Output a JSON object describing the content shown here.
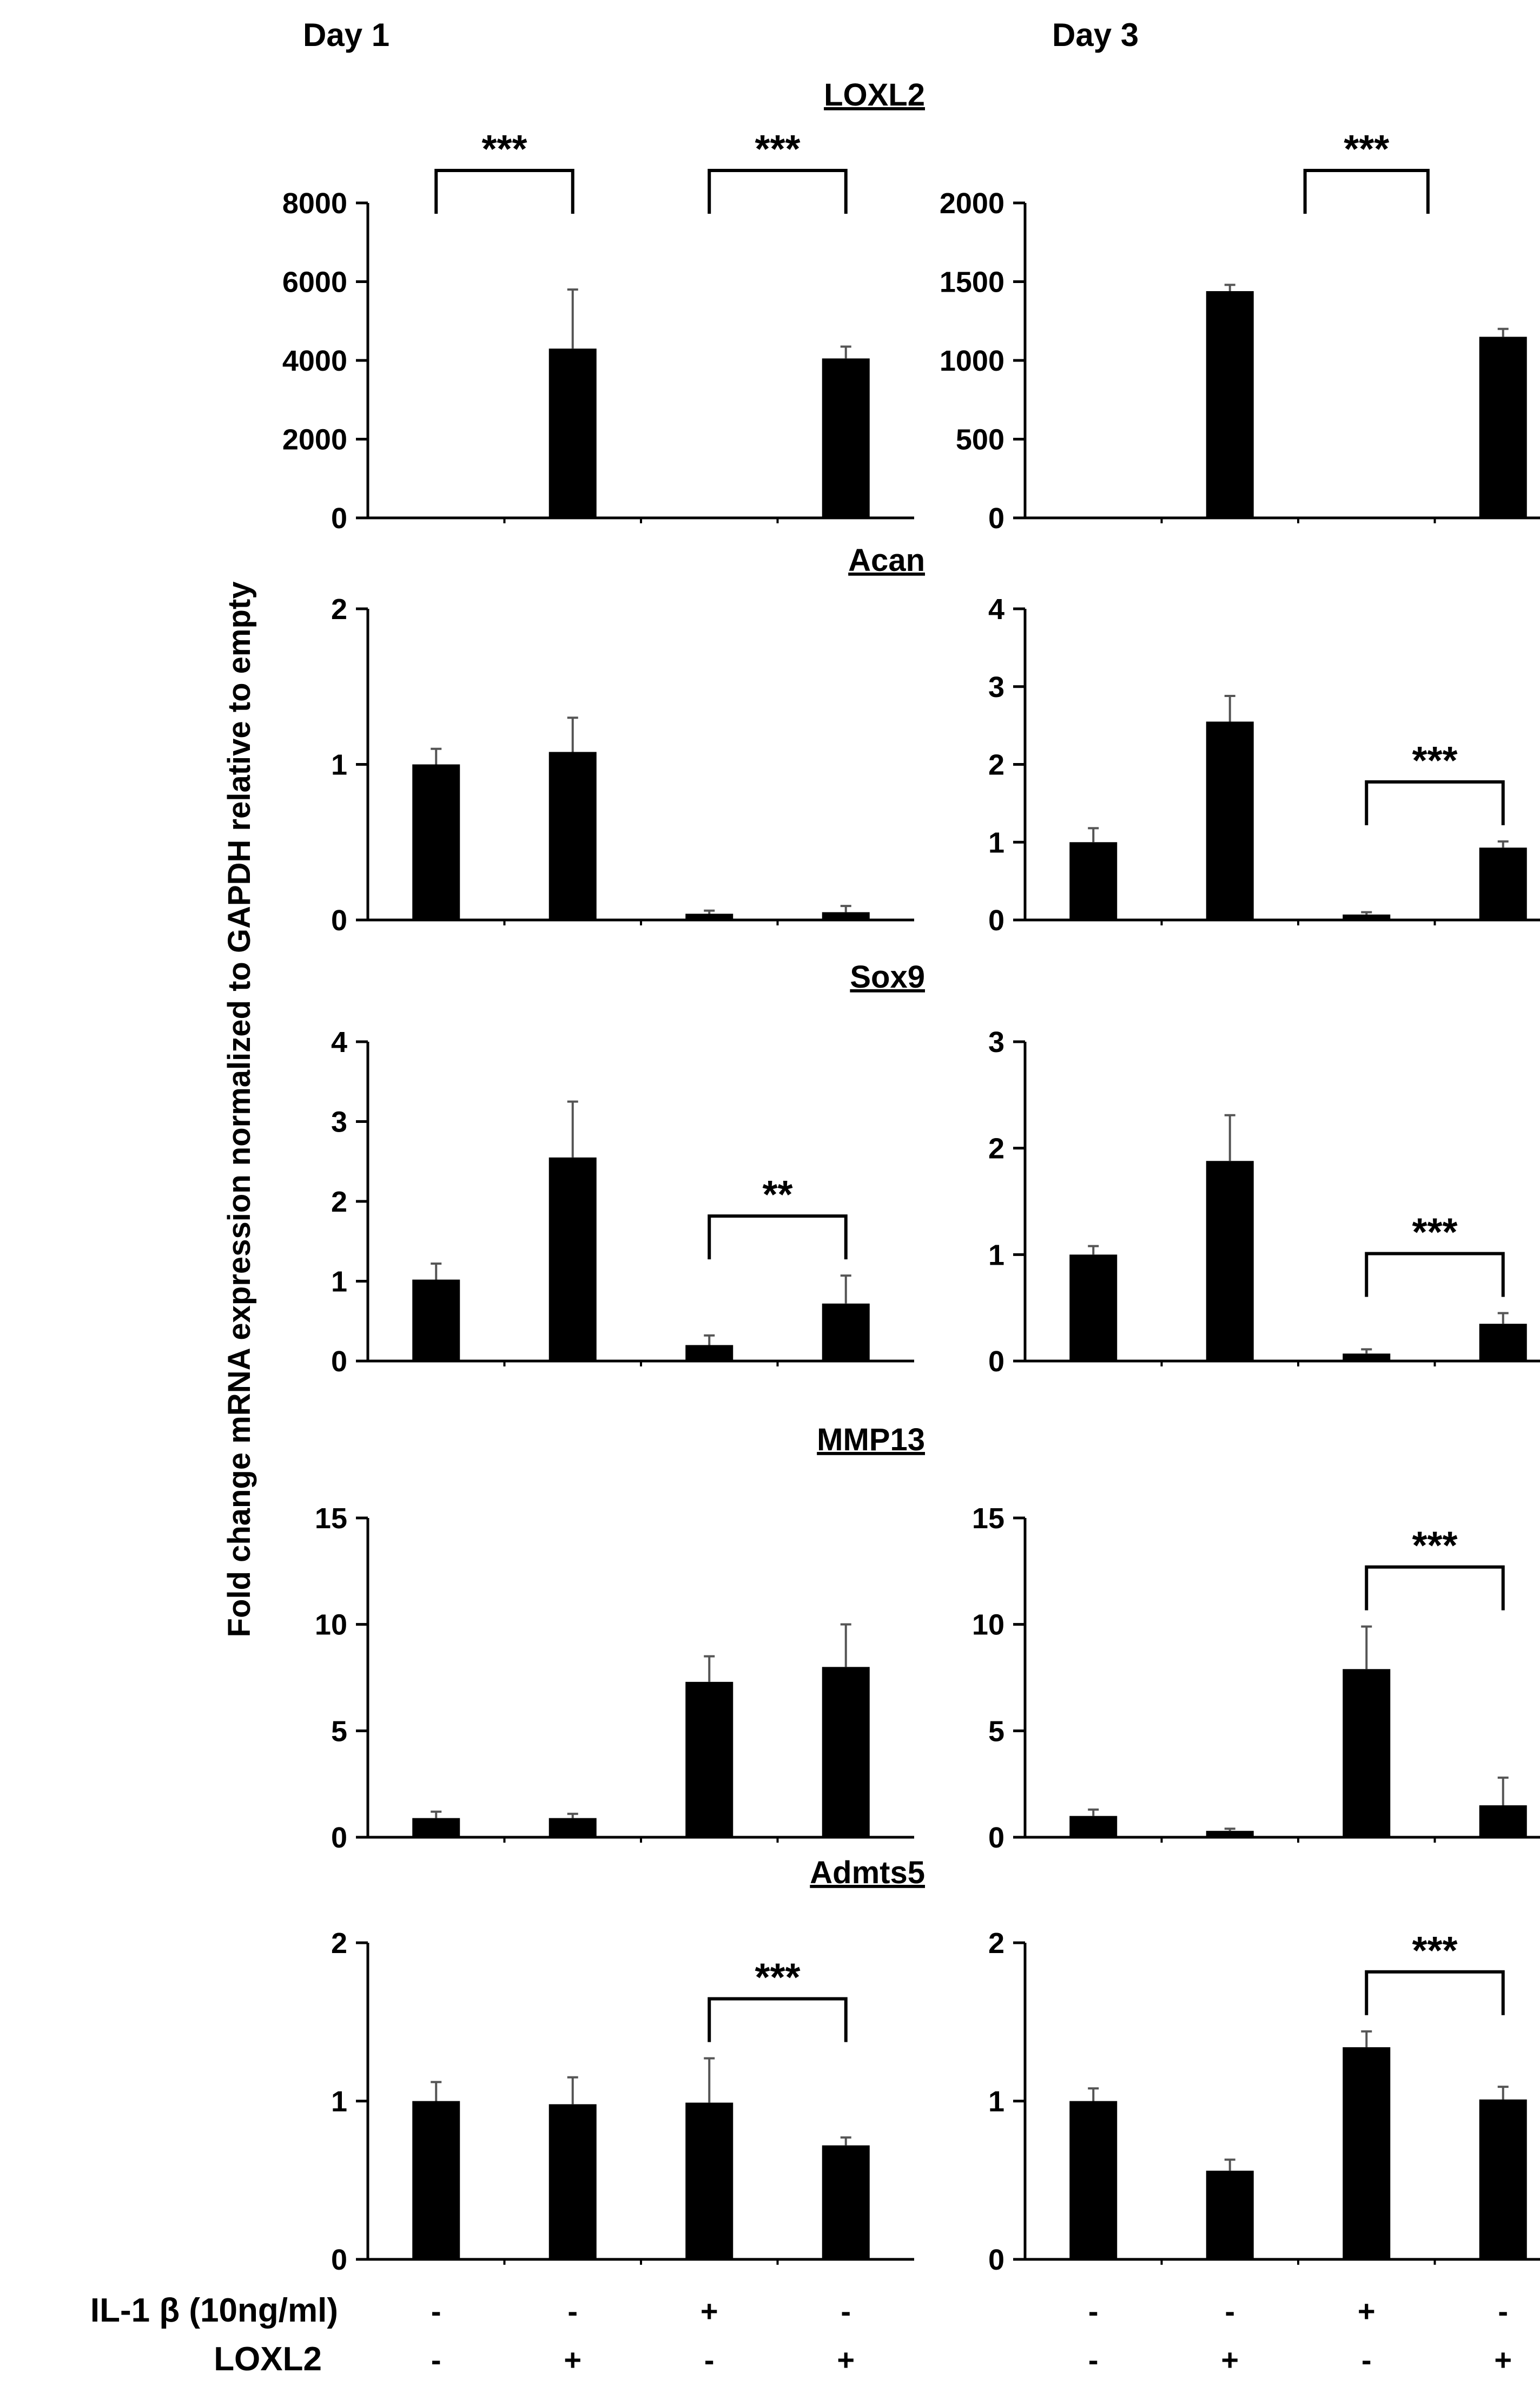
{
  "figure": {
    "column_titles": [
      "Day 1",
      "Day 3"
    ],
    "y_axis_label": "Fold change mRNA expression normalized to GAPDH relative to empty",
    "condition_labels": {
      "il1b": "IL-1 β (10ng/ml)",
      "loxl2": "LOXL2"
    },
    "conditions": {
      "il1b": [
        "-",
        "-",
        "+",
        "-"
      ],
      "loxl2": [
        "-",
        "+",
        "-",
        "+"
      ]
    },
    "colors": {
      "bar": "#000000",
      "axis": "#000000",
      "background": "#ffffff"
    }
  },
  "chart_data": [
    {
      "type": "bar",
      "gene": "LOXL2",
      "day": "Day 1",
      "title": "LOXL2",
      "categories": [
        "-/-",
        "-/+",
        "+/-",
        "-/+"
      ],
      "values": [
        0,
        4300,
        0,
        4050
      ],
      "errors": [
        0,
        1500,
        0,
        300
      ],
      "ylim": [
        0,
        8000
      ],
      "yticks": [
        0,
        2000,
        4000,
        6000,
        8000
      ],
      "significance": [
        {
          "from": 0,
          "to": 1,
          "label": "***"
        },
        {
          "from": 2,
          "to": 3,
          "label": "***"
        }
      ]
    },
    {
      "type": "bar",
      "gene": "LOXL2",
      "day": "Day 3",
      "title": "",
      "categories": [
        "-/-",
        "-/+",
        "+/-",
        "-/+"
      ],
      "values": [
        0,
        1440,
        0,
        1150
      ],
      "errors": [
        0,
        40,
        0,
        50
      ],
      "ylim": [
        0,
        2000
      ],
      "yticks": [
        0,
        500,
        1000,
        1500,
        2000
      ],
      "significance": [
        {
          "from": 1.55,
          "to": 2.45,
          "label": "***"
        }
      ]
    },
    {
      "type": "bar",
      "gene": "Acan",
      "day": "Day 1",
      "title": "Acan",
      "categories": [
        "-/-",
        "-/+",
        "+/-",
        "-/+"
      ],
      "values": [
        1.0,
        1.08,
        0.04,
        0.05
      ],
      "errors": [
        0.1,
        0.22,
        0.02,
        0.04
      ],
      "ylim": [
        0,
        2
      ],
      "yticks": [
        0,
        1,
        2
      ],
      "significance": []
    },
    {
      "type": "bar",
      "gene": "Acan",
      "day": "Day 3",
      "title": "",
      "categories": [
        "-/-",
        "-/+",
        "+/-",
        "-/+"
      ],
      "values": [
        1.0,
        2.55,
        0.07,
        0.93
      ],
      "errors": [
        0.18,
        0.33,
        0.03,
        0.08
      ],
      "ylim": [
        0,
        4
      ],
      "yticks": [
        0,
        1,
        2,
        3,
        4
      ],
      "significance": [
        {
          "from": 2,
          "to": 3,
          "label": "***"
        }
      ]
    },
    {
      "type": "bar",
      "gene": "Sox9",
      "day": "Day 1",
      "title": "Sox9",
      "categories": [
        "-/-",
        "-/+",
        "+/-",
        "-/+"
      ],
      "values": [
        1.02,
        2.55,
        0.2,
        0.72
      ],
      "errors": [
        0.2,
        0.7,
        0.12,
        0.35
      ],
      "ylim": [
        0,
        4
      ],
      "yticks": [
        0,
        1,
        2,
        3,
        4
      ],
      "significance": [
        {
          "from": 2,
          "to": 3,
          "label": "**"
        }
      ]
    },
    {
      "type": "bar",
      "gene": "Sox9",
      "day": "Day 3",
      "title": "",
      "categories": [
        "-/-",
        "-/+",
        "+/-",
        "-/+"
      ],
      "values": [
        1.0,
        1.88,
        0.07,
        0.35
      ],
      "errors": [
        0.08,
        0.43,
        0.04,
        0.1
      ],
      "ylim": [
        0,
        3
      ],
      "yticks": [
        0,
        1,
        2,
        3
      ],
      "significance": [
        {
          "from": 2,
          "to": 3,
          "label": "***"
        }
      ]
    },
    {
      "type": "bar",
      "gene": "MMP13",
      "day": "Day 1",
      "title": "MMP13",
      "categories": [
        "-/-",
        "-/+",
        "+/-",
        "-/+"
      ],
      "values": [
        0.9,
        0.9,
        7.3,
        8.0
      ],
      "errors": [
        0.3,
        0.2,
        1.2,
        2.0
      ],
      "ylim": [
        0,
        15
      ],
      "yticks": [
        0,
        5,
        10,
        15
      ],
      "significance": []
    },
    {
      "type": "bar",
      "gene": "MMP13",
      "day": "Day 3",
      "title": "",
      "categories": [
        "-/-",
        "-/+",
        "+/-",
        "-/+"
      ],
      "values": [
        1.0,
        0.3,
        7.9,
        1.5
      ],
      "errors": [
        0.3,
        0.1,
        2.0,
        1.3
      ],
      "ylim": [
        0,
        15
      ],
      "yticks": [
        0,
        5,
        10,
        15
      ],
      "significance": [
        {
          "from": 2,
          "to": 3,
          "label": "***"
        }
      ]
    },
    {
      "type": "bar",
      "gene": "Admts5",
      "day": "Day 1",
      "title": "Admts5",
      "categories": [
        "-/-",
        "-/+",
        "+/-",
        "-/+"
      ],
      "values": [
        1.0,
        0.98,
        0.99,
        0.72
      ],
      "errors": [
        0.12,
        0.17,
        0.28,
        0.05
      ],
      "ylim": [
        0,
        2
      ],
      "yticks": [
        0,
        1,
        2
      ],
      "significance": [
        {
          "from": 2,
          "to": 3,
          "label": "***"
        }
      ]
    },
    {
      "type": "bar",
      "gene": "Admts5",
      "day": "Day 3",
      "title": "",
      "categories": [
        "-/-",
        "-/+",
        "+/-",
        "-/+"
      ],
      "values": [
        1.0,
        0.56,
        1.34,
        1.01
      ],
      "errors": [
        0.08,
        0.07,
        0.1,
        0.08
      ],
      "ylim": [
        0,
        2
      ],
      "yticks": [
        0,
        1,
        2
      ],
      "significance": [
        {
          "from": 2,
          "to": 3,
          "label": "***"
        }
      ]
    }
  ]
}
